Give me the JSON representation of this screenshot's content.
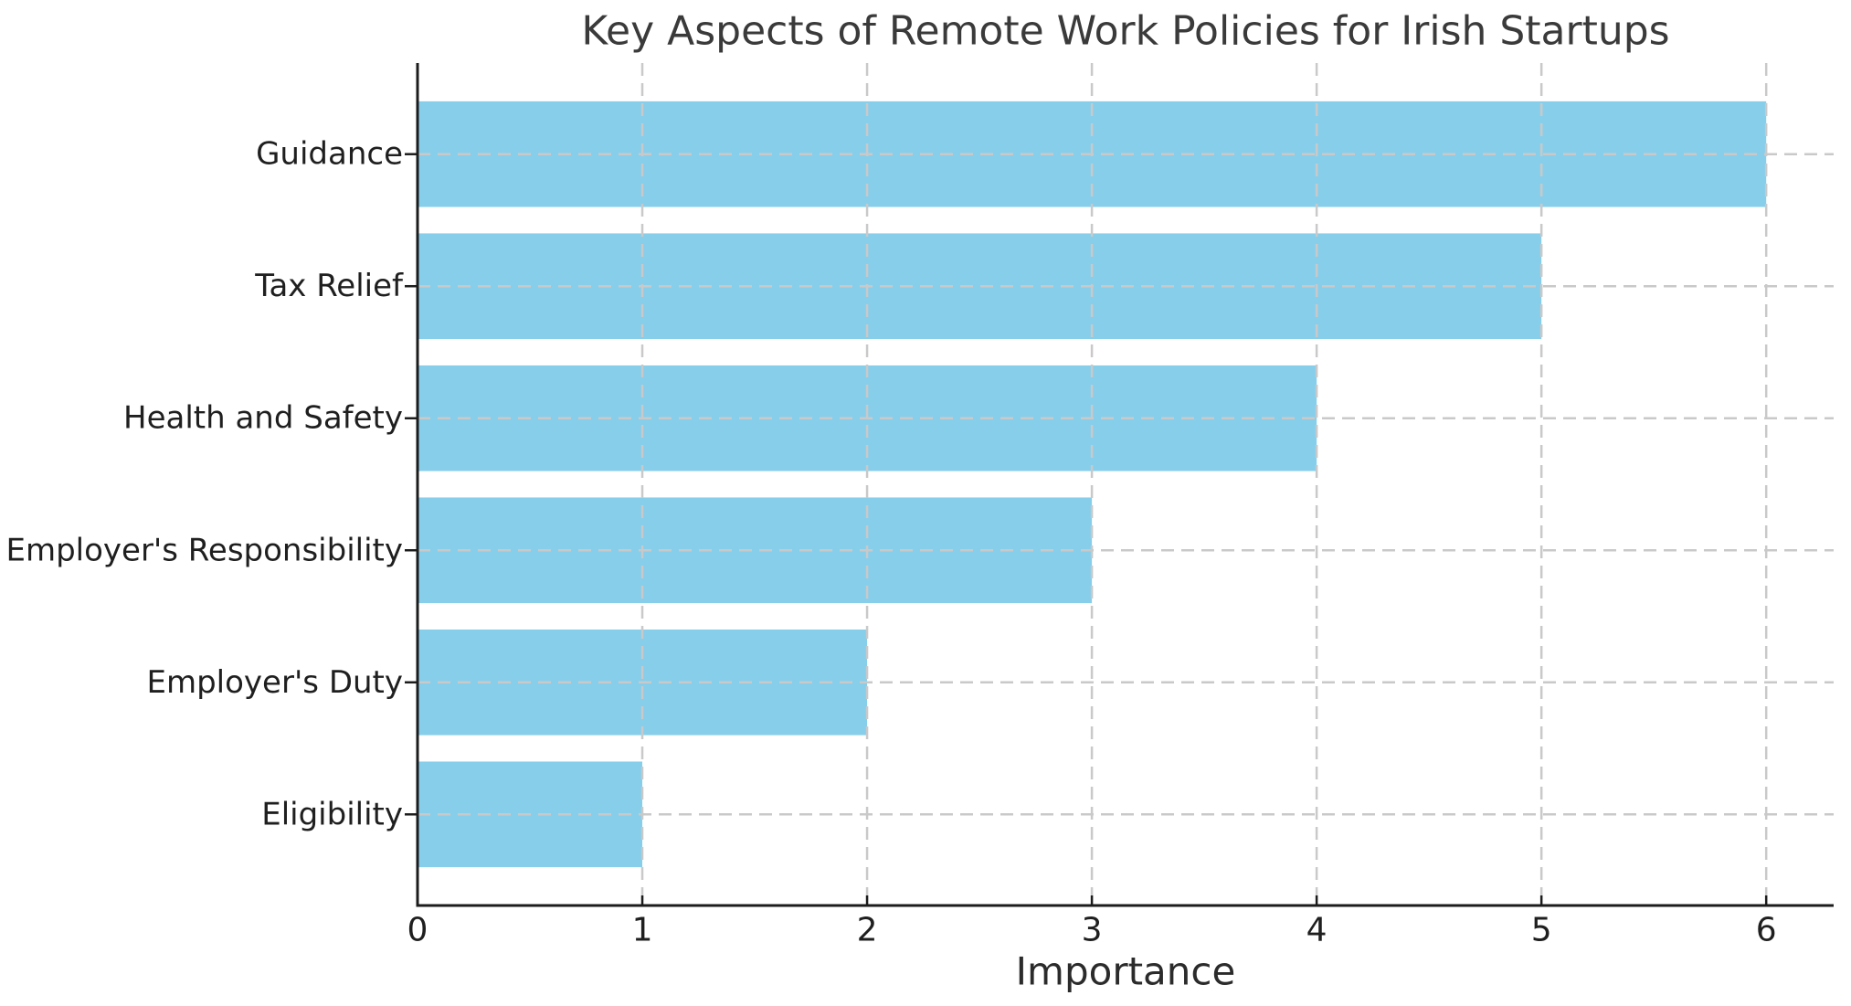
{
  "figure": {
    "background": "#ffffff"
  },
  "chart_data": {
    "type": "bar",
    "orientation": "horizontal",
    "title": "Key Aspects of Remote Work Policies for Irish Startups",
    "xlabel": "Importance",
    "ylabel": "",
    "categories": [
      "Guidance",
      "Tax Relief",
      "Health and Safety",
      "Employer's Responsibility",
      "Employer's Duty",
      "Eligibility"
    ],
    "values": [
      6,
      5,
      4,
      3,
      2,
      1
    ],
    "xticks": [
      "0",
      "1",
      "2",
      "3",
      "4",
      "5",
      "6"
    ],
    "xtick_values": [
      0,
      1,
      2,
      3,
      4,
      5,
      6
    ],
    "xlim": [
      0,
      6.3
    ],
    "grid": {
      "x": true,
      "y": true,
      "style": "dashed"
    },
    "legend_position": "none",
    "colors": {
      "bar": "#87CEEB",
      "grid": "#c9c9c9",
      "axis": "#1c1c1c",
      "tick_label": "#1f1f1f",
      "category_label": "#1f1f1f",
      "title": "#3a3a3a",
      "xlabel": "#2b2b2b"
    }
  }
}
